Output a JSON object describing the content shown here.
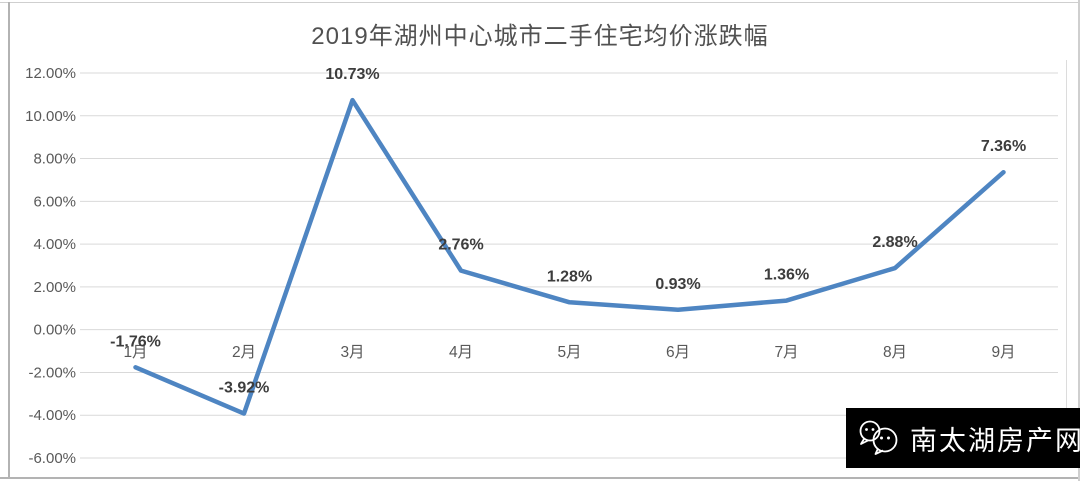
{
  "title": {
    "text": "2019年湖州中心城市二手住宅均价涨跌幅"
  },
  "chart_data": {
    "type": "line",
    "title": "2019年湖州中心城市二手住宅均价涨跌幅",
    "categories": [
      "1月",
      "2月",
      "3月",
      "4月",
      "5月",
      "6月",
      "7月",
      "8月",
      "9月"
    ],
    "values": [
      -1.76,
      -3.92,
      10.73,
      2.76,
      1.28,
      0.93,
      1.36,
      2.88,
      7.36
    ],
    "data_labels": [
      "-1.76%",
      "-3.92%",
      "10.73%",
      "2.76%",
      "1.28%",
      "0.93%",
      "1.36%",
      "2.88%",
      "7.36%"
    ],
    "y_ticks": [
      "12.00%",
      "10.00%",
      "8.00%",
      "6.00%",
      "4.00%",
      "2.00%",
      "0.00%",
      "-2.00%",
      "-4.00%",
      "-6.00%"
    ],
    "y_tick_values": [
      12,
      10,
      8,
      6,
      4,
      2,
      0,
      -2,
      -4,
      -6
    ],
    "ylim": [
      -6,
      12
    ],
    "y_step": 2,
    "xlabel": "",
    "ylabel": "",
    "grid": true,
    "legend_position": "none",
    "colors": {
      "line": "#4e85c2",
      "grid": "#d9d9d9",
      "tick_text": "#595959",
      "data_label": "#3d3d3d",
      "title_text": "#515151"
    }
  },
  "watermark": {
    "label": "南太湖房产网",
    "icon": "wechat-icon",
    "background": "#000000",
    "text_color": "#ffffff"
  }
}
